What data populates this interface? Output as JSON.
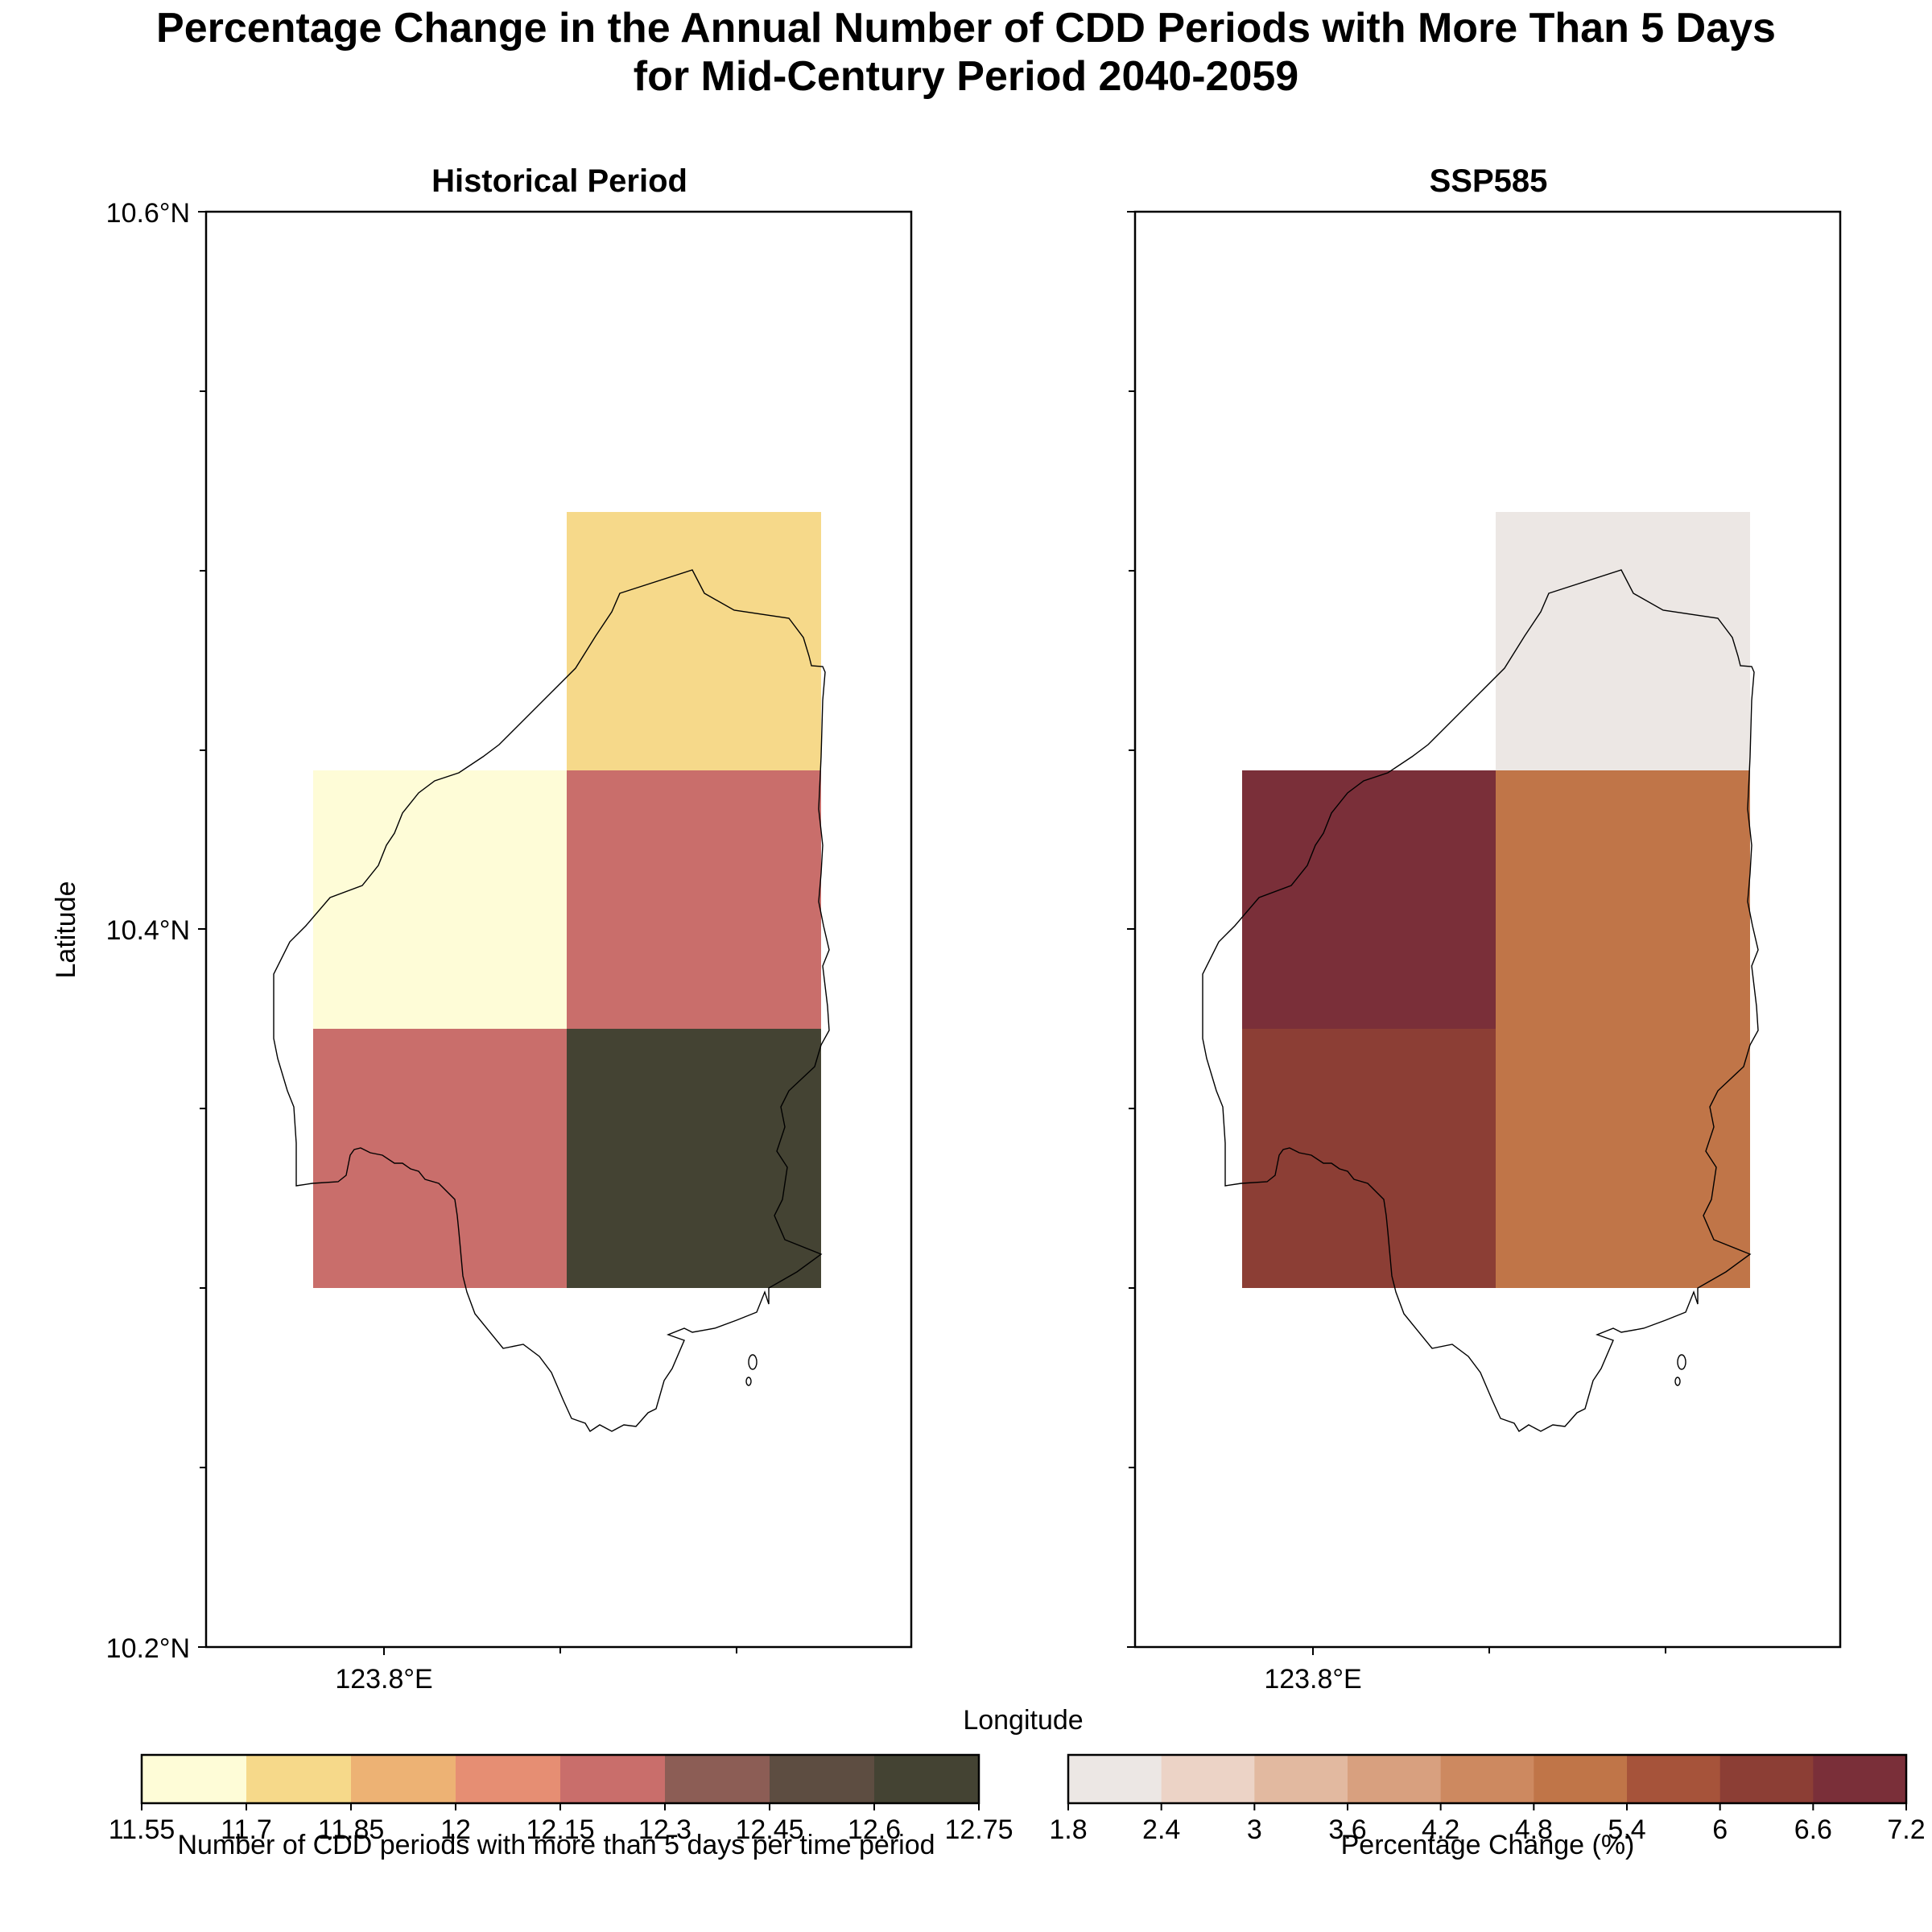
{
  "figure": {
    "title_line1": "Percentage Change in the Annual Number of CDD Periods with More Than 5 Days",
    "title_line2": "for Mid-Century Period 2040-2059",
    "shared_xlabel": "Longitude",
    "shared_ylabel": "Latitude"
  },
  "chart_data": [
    {
      "type": "heatmap",
      "panel": "left",
      "title": "Historical Period",
      "xlabel": "Longitude",
      "ylabel": "Latitude",
      "yticks": [
        "10.6°N",
        "10.4°N",
        "10.2°N"
      ],
      "xticks": [
        "123.8°E"
      ],
      "ylim": [
        10.2,
        10.6
      ],
      "cells": [
        {
          "row": "top",
          "col": "right",
          "value": 11.75
        },
        {
          "row": "middle",
          "col": "left",
          "value": 11.6
        },
        {
          "row": "middle",
          "col": "right",
          "value": 12.2
        },
        {
          "row": "bottom",
          "col": "left",
          "value": 12.2
        },
        {
          "row": "bottom",
          "col": "right",
          "value": 12.7
        }
      ],
      "colorbar": {
        "label": "Number of CDD periods with more than 5 days per time period",
        "ticks": [
          "11.55",
          "11.7",
          "11.85",
          "12",
          "12.15",
          "12.3",
          "12.45",
          "12.6",
          "12.75"
        ],
        "colors": [
          "#fefcd7",
          "#f6d98a",
          "#edb274",
          "#e68e73",
          "#c96e6b",
          "#8c5d55",
          "#5d4d41",
          "#444333"
        ]
      }
    },
    {
      "type": "heatmap",
      "panel": "right",
      "title": "SSP585",
      "xlabel": "Longitude",
      "yticks": [],
      "xticks": [
        "123.8°E"
      ],
      "ylim": [
        10.2,
        10.6
      ],
      "cells": [
        {
          "row": "top",
          "col": "right",
          "value": 2.0
        },
        {
          "row": "middle",
          "col": "left",
          "value": 6.9
        },
        {
          "row": "middle",
          "col": "right",
          "value": 5.0
        },
        {
          "row": "bottom",
          "col": "left",
          "value": 6.3
        },
        {
          "row": "bottom",
          "col": "right",
          "value": 5.0
        }
      ],
      "colorbar": {
        "label": "Percentage Change (%)",
        "ticks": [
          "1.8",
          "2.4",
          "3",
          "3.6",
          "4.2",
          "4.8",
          "5.4",
          "6",
          "6.6",
          "7.2"
        ],
        "colors": [
          "#ece7e4",
          "#ecd3c6",
          "#e2b9a0",
          "#d8a07f",
          "#cd8960",
          "#c07548",
          "#a6533a",
          "#8c3e35",
          "#7a2f39"
        ]
      }
    }
  ]
}
